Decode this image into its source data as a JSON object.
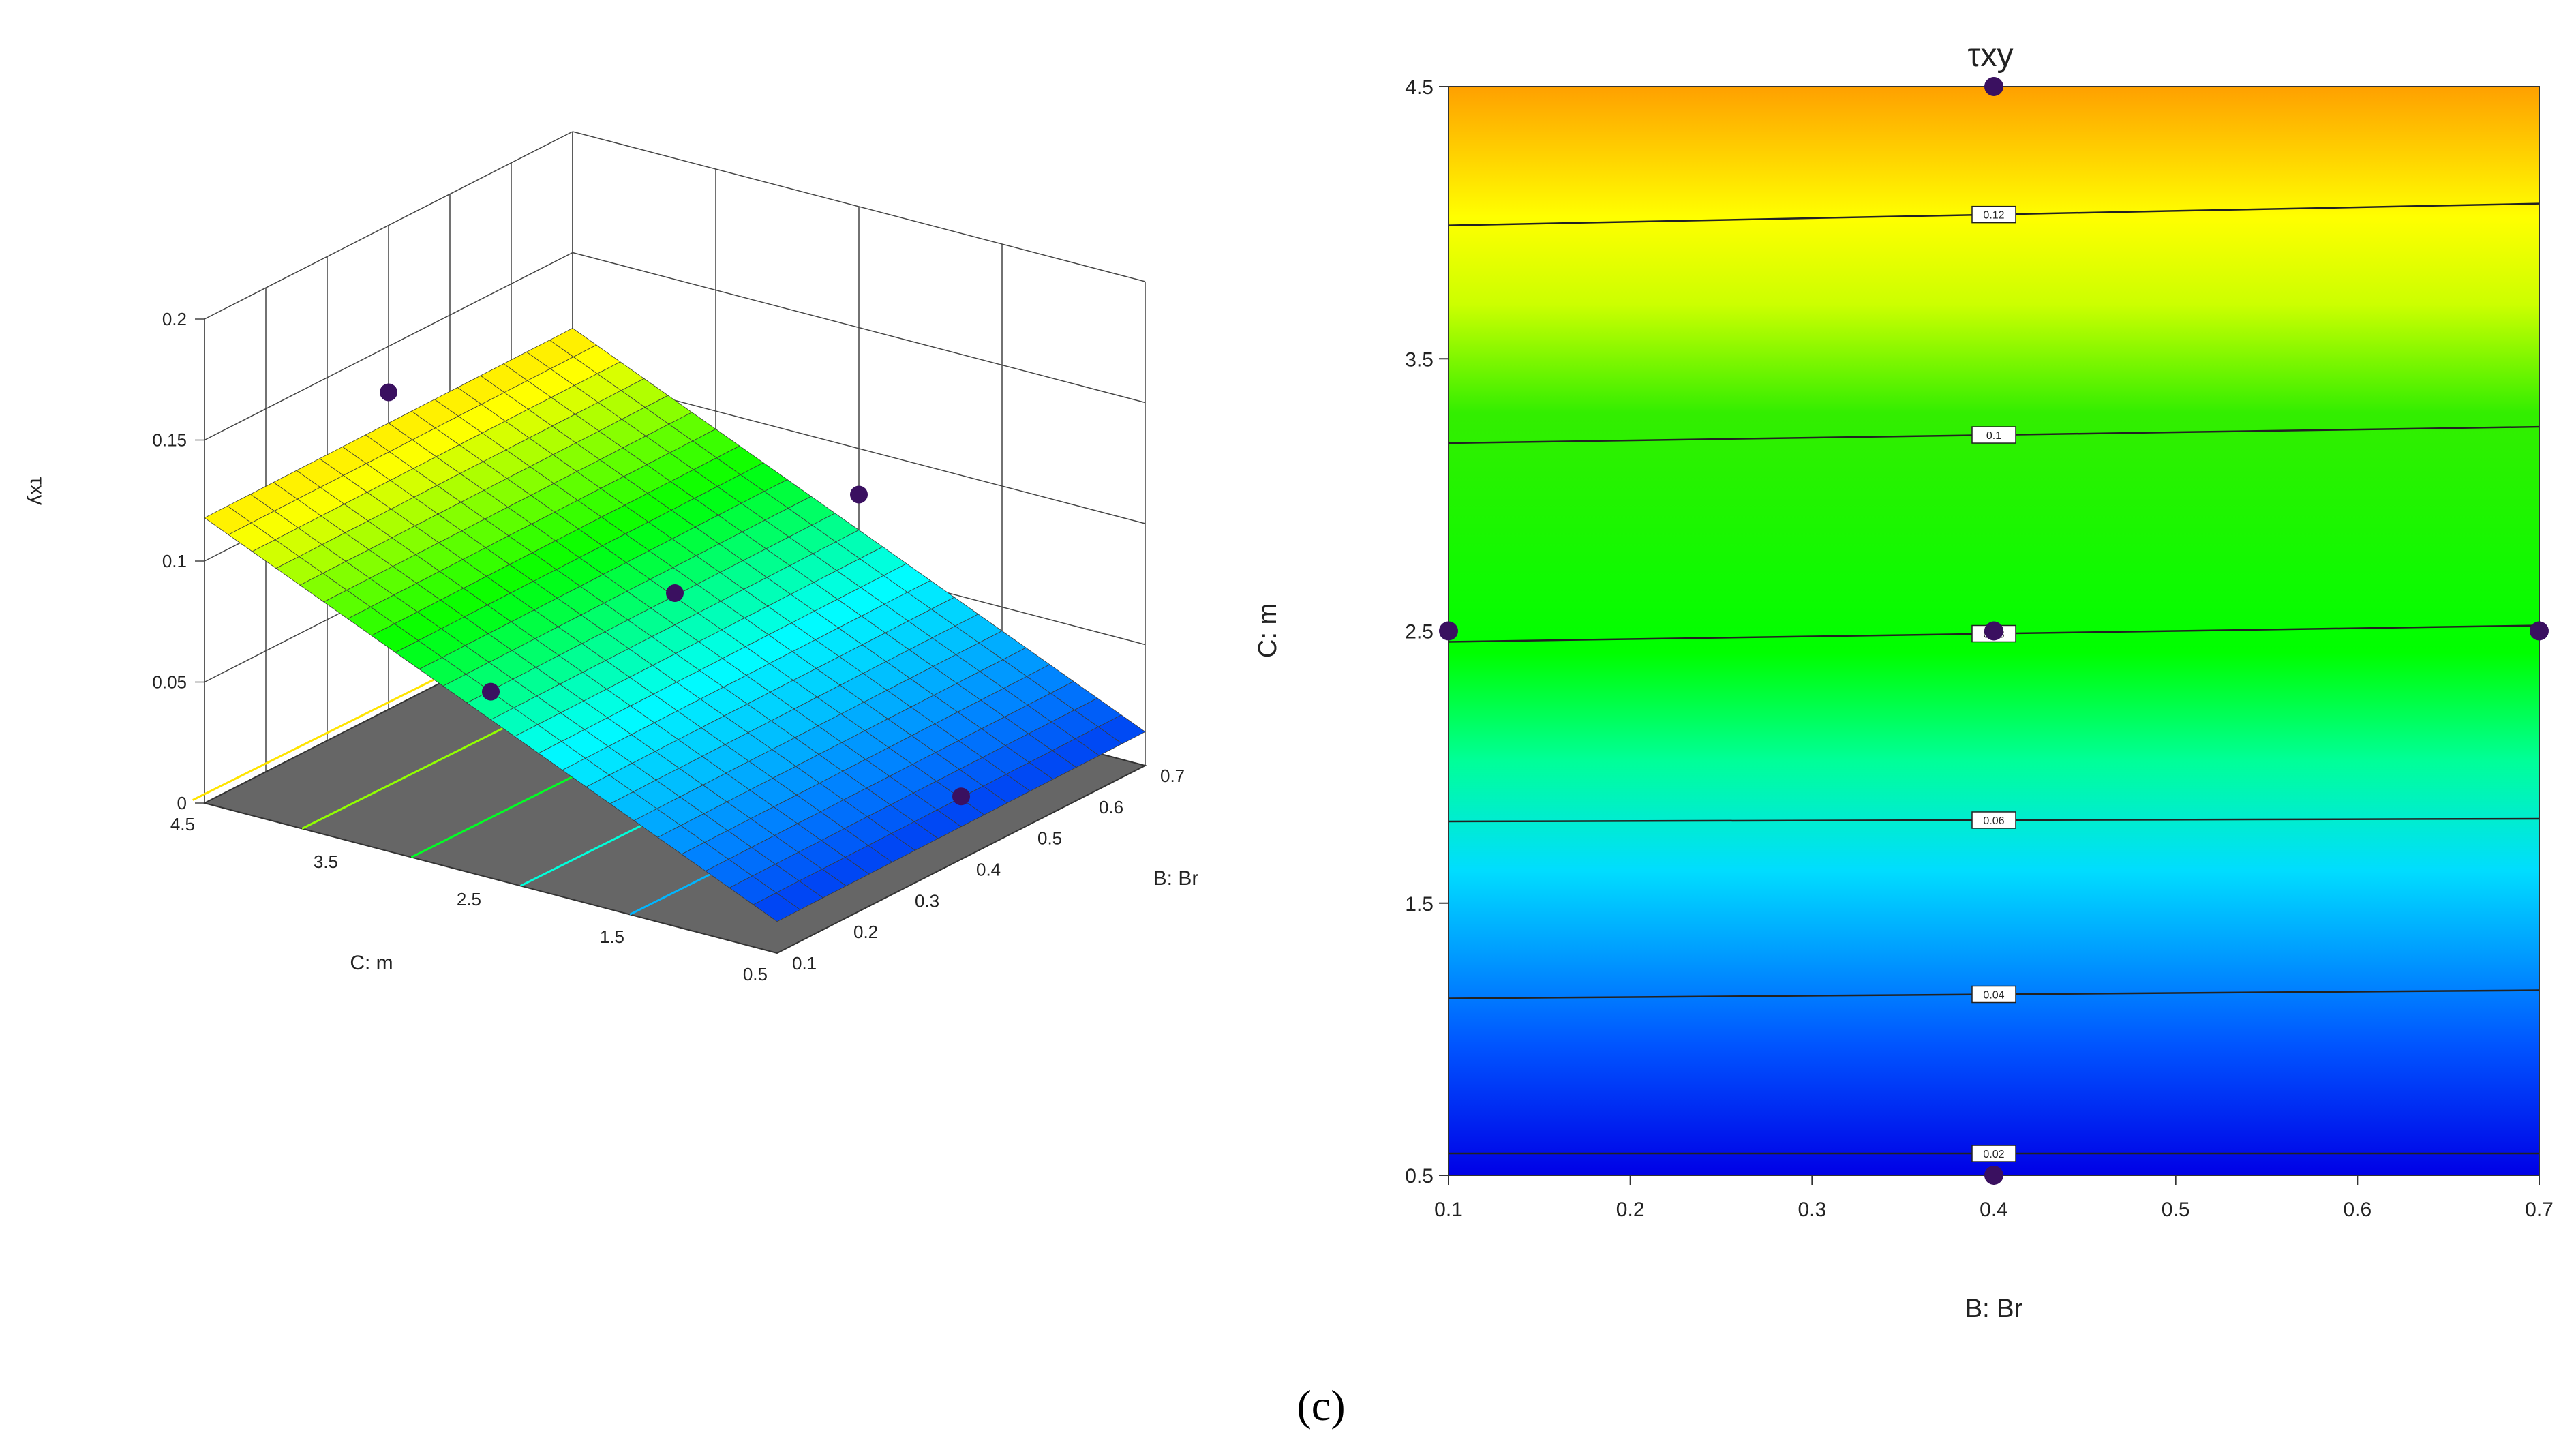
{
  "panel_label": "(c)",
  "colors": {
    "scale": [
      "#0000e6",
      "#0080ff",
      "#00ffff",
      "#00ff00",
      "#ffff00",
      "#ffa000"
    ],
    "floor": "#666666",
    "design_point": "#3a1060"
  },
  "chart_data": [
    {
      "type": "surface",
      "view": "3d",
      "title": "",
      "xlabel": "B: Br",
      "ylabel": "C: m",
      "zlabel": "τxy",
      "x_ticks": [
        "0.1",
        "0.2",
        "0.3",
        "0.4",
        "0.5",
        "0.6",
        "0.7"
      ],
      "y_ticks": [
        "0.5",
        "1.5",
        "2.5",
        "3.5",
        "4.5"
      ],
      "z_ticks": [
        "0",
        "0.05",
        "0.1",
        "0.15",
        "0.2"
      ],
      "xlim": [
        0.1,
        0.7
      ],
      "ylim": [
        0.5,
        4.5
      ],
      "zlim": [
        0,
        0.2
      ],
      "surface": {
        "model": "plane",
        "z_at_m_0_5": 0.0135,
        "z_per_unit_m": 0.0262,
        "z_per_unit_Br": 0.0015
      },
      "floor_contours": [
        0.04,
        0.06,
        0.08,
        0.1,
        0.12
      ],
      "design_points": [
        {
          "x": 0.4,
          "y": 2.5,
          "z": 0.079
        },
        {
          "x": 0.7,
          "y": 2.5,
          "z": 0.081
        },
        {
          "x": 0.1,
          "y": 2.5,
          "z": 0.077
        },
        {
          "x": 0.4,
          "y": 4.5,
          "z": 0.131
        },
        {
          "x": 0.4,
          "y": 0.5,
          "z": 0.026
        }
      ]
    },
    {
      "type": "contour",
      "view": "2d",
      "title": "τxy",
      "xlabel": "B: Br",
      "ylabel": "C: m",
      "x_ticks": [
        "0.1",
        "0.2",
        "0.3",
        "0.4",
        "0.5",
        "0.6",
        "0.7"
      ],
      "y_ticks": [
        "0.5",
        "1.5",
        "2.5",
        "3.5",
        "4.5"
      ],
      "xlim": [
        0.1,
        0.7
      ],
      "ylim": [
        0.5,
        4.5
      ],
      "contour_lines": [
        {
          "level": 0.02,
          "label": "0.02",
          "m_at_left": 0.58,
          "m_at_right": 0.58
        },
        {
          "level": 0.04,
          "label": "0.04",
          "m_at_left": 1.15,
          "m_at_right": 1.18
        },
        {
          "level": 0.06,
          "label": "0.06",
          "m_at_left": 1.8,
          "m_at_right": 1.81
        },
        {
          "level": 0.08,
          "label": "0.08",
          "m_at_left": 2.46,
          "m_at_right": 2.52
        },
        {
          "level": 0.1,
          "label": "0.1",
          "m_at_left": 3.19,
          "m_at_right": 3.25
        },
        {
          "level": 0.12,
          "label": "0.12",
          "m_at_left": 3.99,
          "m_at_right": 4.07
        }
      ],
      "design_points": [
        {
          "x": 0.4,
          "y": 4.5
        },
        {
          "x": 0.1,
          "y": 2.5
        },
        {
          "x": 0.4,
          "y": 2.5
        },
        {
          "x": 0.7,
          "y": 2.5
        },
        {
          "x": 0.4,
          "y": 0.5
        }
      ]
    }
  ]
}
